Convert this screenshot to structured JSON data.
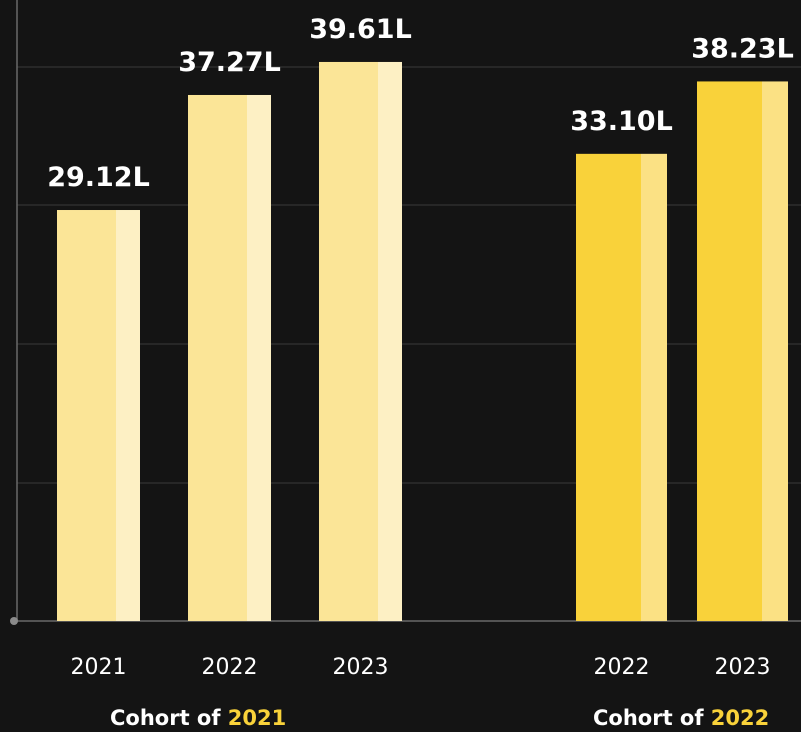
{
  "colors": {
    "background": "#141414",
    "grid": "#3a3a3a",
    "axis": "#6a6a6a",
    "cohort2021_bar": "#fbe597",
    "cohort2021_highlight": "#fdf0c4",
    "cohort2022_bar": "#f9d23a",
    "cohort2022_highlight": "#fbe184",
    "label_text": "#ffffff",
    "accent_text": "#f9d23a"
  },
  "chart_data": {
    "type": "bar",
    "title": "",
    "xlabel": "",
    "ylabel": "",
    "ylim": [
      0,
      44
    ],
    "grid": true,
    "value_suffix": "L",
    "groups": [
      {
        "label_prefix": "Cohort of ",
        "label_year": "2021",
        "categories": [
          "2021",
          "2022",
          "2023"
        ],
        "values": [
          29.12,
          37.27,
          39.61
        ],
        "value_labels": [
          "29.12L",
          "37.27L",
          "39.61L"
        ]
      },
      {
        "label_prefix": "Cohort of ",
        "label_year": "2022",
        "categories": [
          "2022",
          "2023"
        ],
        "values": [
          33.1,
          38.23
        ],
        "value_labels": [
          "33.10L",
          "38.23L"
        ]
      }
    ]
  }
}
